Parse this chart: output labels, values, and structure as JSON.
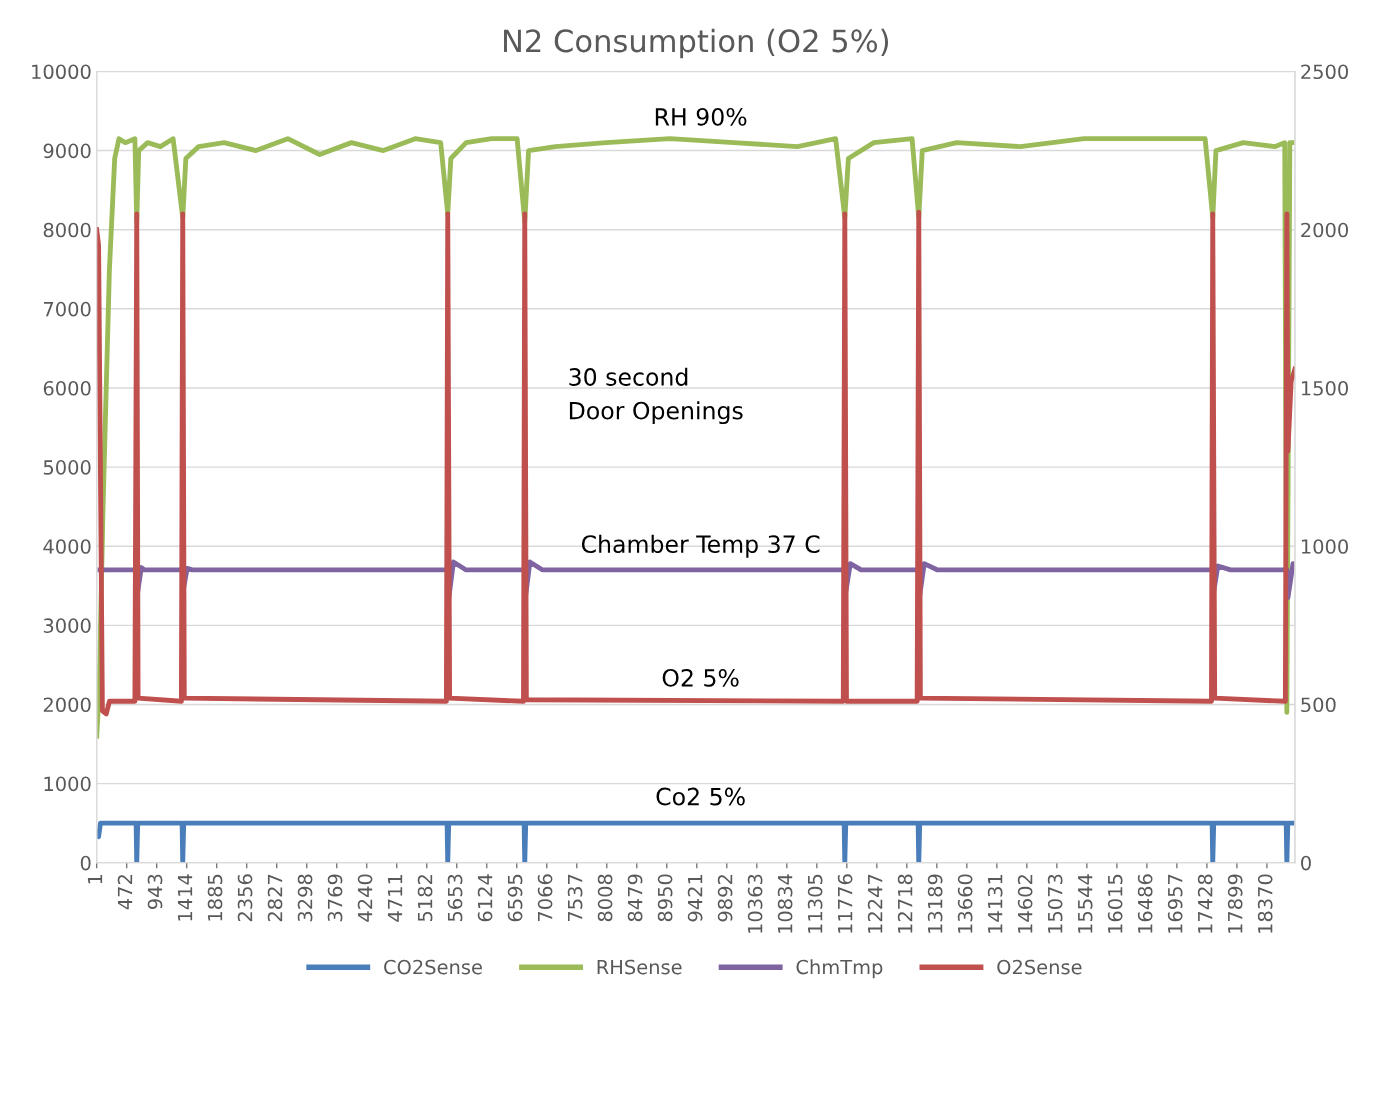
{
  "chart_data": {
    "type": "line",
    "title": "N2 Consumption (O2 5%)",
    "xlim": [
      1,
      18810
    ],
    "xticks": [
      1,
      472,
      943,
      1414,
      1885,
      2356,
      2827,
      3298,
      3769,
      4240,
      4711,
      5182,
      5653,
      6124,
      6595,
      7066,
      7537,
      8008,
      8479,
      8950,
      9421,
      9892,
      10363,
      10834,
      11305,
      11776,
      12247,
      12718,
      13189,
      13660,
      14131,
      14602,
      15073,
      15544,
      16015,
      16486,
      16957,
      17428,
      17899,
      18370
    ],
    "ylim": [
      0,
      10000
    ],
    "yticks": [
      0,
      1000,
      2000,
      3000,
      4000,
      5000,
      6000,
      7000,
      8000,
      9000,
      10000
    ],
    "y2lim": [
      0,
      2500
    ],
    "y2ticks": [
      0,
      500,
      1000,
      1500,
      2000,
      2500
    ],
    "grid": "y",
    "legend": "bottom",
    "marker": "none",
    "line_style": "solid",
    "series": [
      {
        "name": "CO2Sense",
        "color": "#4a7ebb",
        "x": [
          1,
          30,
          60,
          619,
          629,
          644,
          1341,
          1351,
          1366,
          5501,
          5511,
          5526,
          6710,
          6720,
          6735,
          11734,
          11744,
          11759,
          12895,
          12905,
          12920,
          17510,
          17520,
          17535,
          18673,
          18683,
          18698,
          18810
        ],
        "values": [
          350,
          330,
          500,
          500,
          0,
          500,
          500,
          0,
          500,
          500,
          0,
          500,
          500,
          0,
          500,
          500,
          0,
          500,
          500,
          0,
          500,
          500,
          0,
          500,
          500,
          0,
          500,
          500
        ]
      },
      {
        "name": "RHSense",
        "color": "#9bbb59",
        "x": [
          1,
          40,
          100,
          200,
          283,
          350,
          450,
          600,
          629,
          660,
          800,
          1000,
          1200,
          1351,
          1400,
          1600,
          2000,
          2500,
          3000,
          3500,
          4000,
          4500,
          5000,
          5400,
          5511,
          5560,
          5800,
          6200,
          6600,
          6720,
          6780,
          7200,
          8000,
          9000,
          10000,
          11000,
          11600,
          11744,
          11800,
          12200,
          12800,
          12905,
          12960,
          13500,
          14500,
          15500,
          16500,
          17400,
          17520,
          17570,
          18000,
          18500,
          18650,
          18683,
          18730,
          18810
        ],
        "values": [
          1600,
          2200,
          4500,
          7500,
          8900,
          9150,
          9100,
          9150,
          8100,
          9000,
          9100,
          9050,
          9150,
          8150,
          8900,
          9050,
          9100,
          9000,
          9150,
          8950,
          9100,
          9000,
          9150,
          9100,
          8200,
          8900,
          9100,
          9150,
          9150,
          8100,
          9000,
          9050,
          9100,
          9150,
          9100,
          9050,
          9150,
          8150,
          8900,
          9100,
          9150,
          8150,
          9000,
          9100,
          9050,
          9150,
          9150,
          9150,
          8150,
          9000,
          9100,
          9050,
          9100,
          1900,
          9100,
          9100
        ]
      },
      {
        "name": "ChmTmp",
        "color": "#8064a2",
        "x": [
          50,
          629,
          640,
          700,
          750,
          1351,
          1360,
          1420,
          1500,
          5511,
          5520,
          5600,
          5800,
          6720,
          6730,
          6800,
          7000,
          11744,
          11755,
          11830,
          12000,
          12905,
          12915,
          12990,
          13200,
          17520,
          17530,
          17600,
          17800,
          18683,
          18700,
          18780,
          18810
        ],
        "values": [
          3700,
          3700,
          3400,
          3730,
          3700,
          3700,
          3450,
          3720,
          3700,
          3700,
          3300,
          3800,
          3700,
          3700,
          3350,
          3800,
          3700,
          3700,
          3400,
          3780,
          3700,
          3700,
          3350,
          3780,
          3700,
          3700,
          3400,
          3750,
          3700,
          3700,
          3350,
          3780,
          3750
        ]
      },
      {
        "name": "O2Sense",
        "color": "#c0504d",
        "axis": "y2",
        "x": [
          1,
          30,
          90,
          150,
          200,
          600,
          629,
          650,
          1330,
          1351,
          1375,
          5490,
          5511,
          5540,
          6700,
          6720,
          6745,
          11720,
          11744,
          11770,
          12880,
          12905,
          12930,
          17500,
          17520,
          17550,
          18660,
          18683,
          18700,
          18750,
          18810
        ],
        "values": [
          2000,
          1950,
          480,
          470,
          510,
          510,
          2050,
          520,
          510,
          2050,
          520,
          510,
          2050,
          520,
          510,
          2050,
          515,
          510,
          2050,
          510,
          510,
          2055,
          520,
          510,
          2050,
          520,
          510,
          2050,
          1300,
          1520,
          1560
        ]
      }
    ],
    "annotations": [
      "RH 90%",
      "30 second\nDoor Openings",
      "Chamber Temp 37 C",
      "O2 5%",
      "Co2 5%"
    ]
  }
}
